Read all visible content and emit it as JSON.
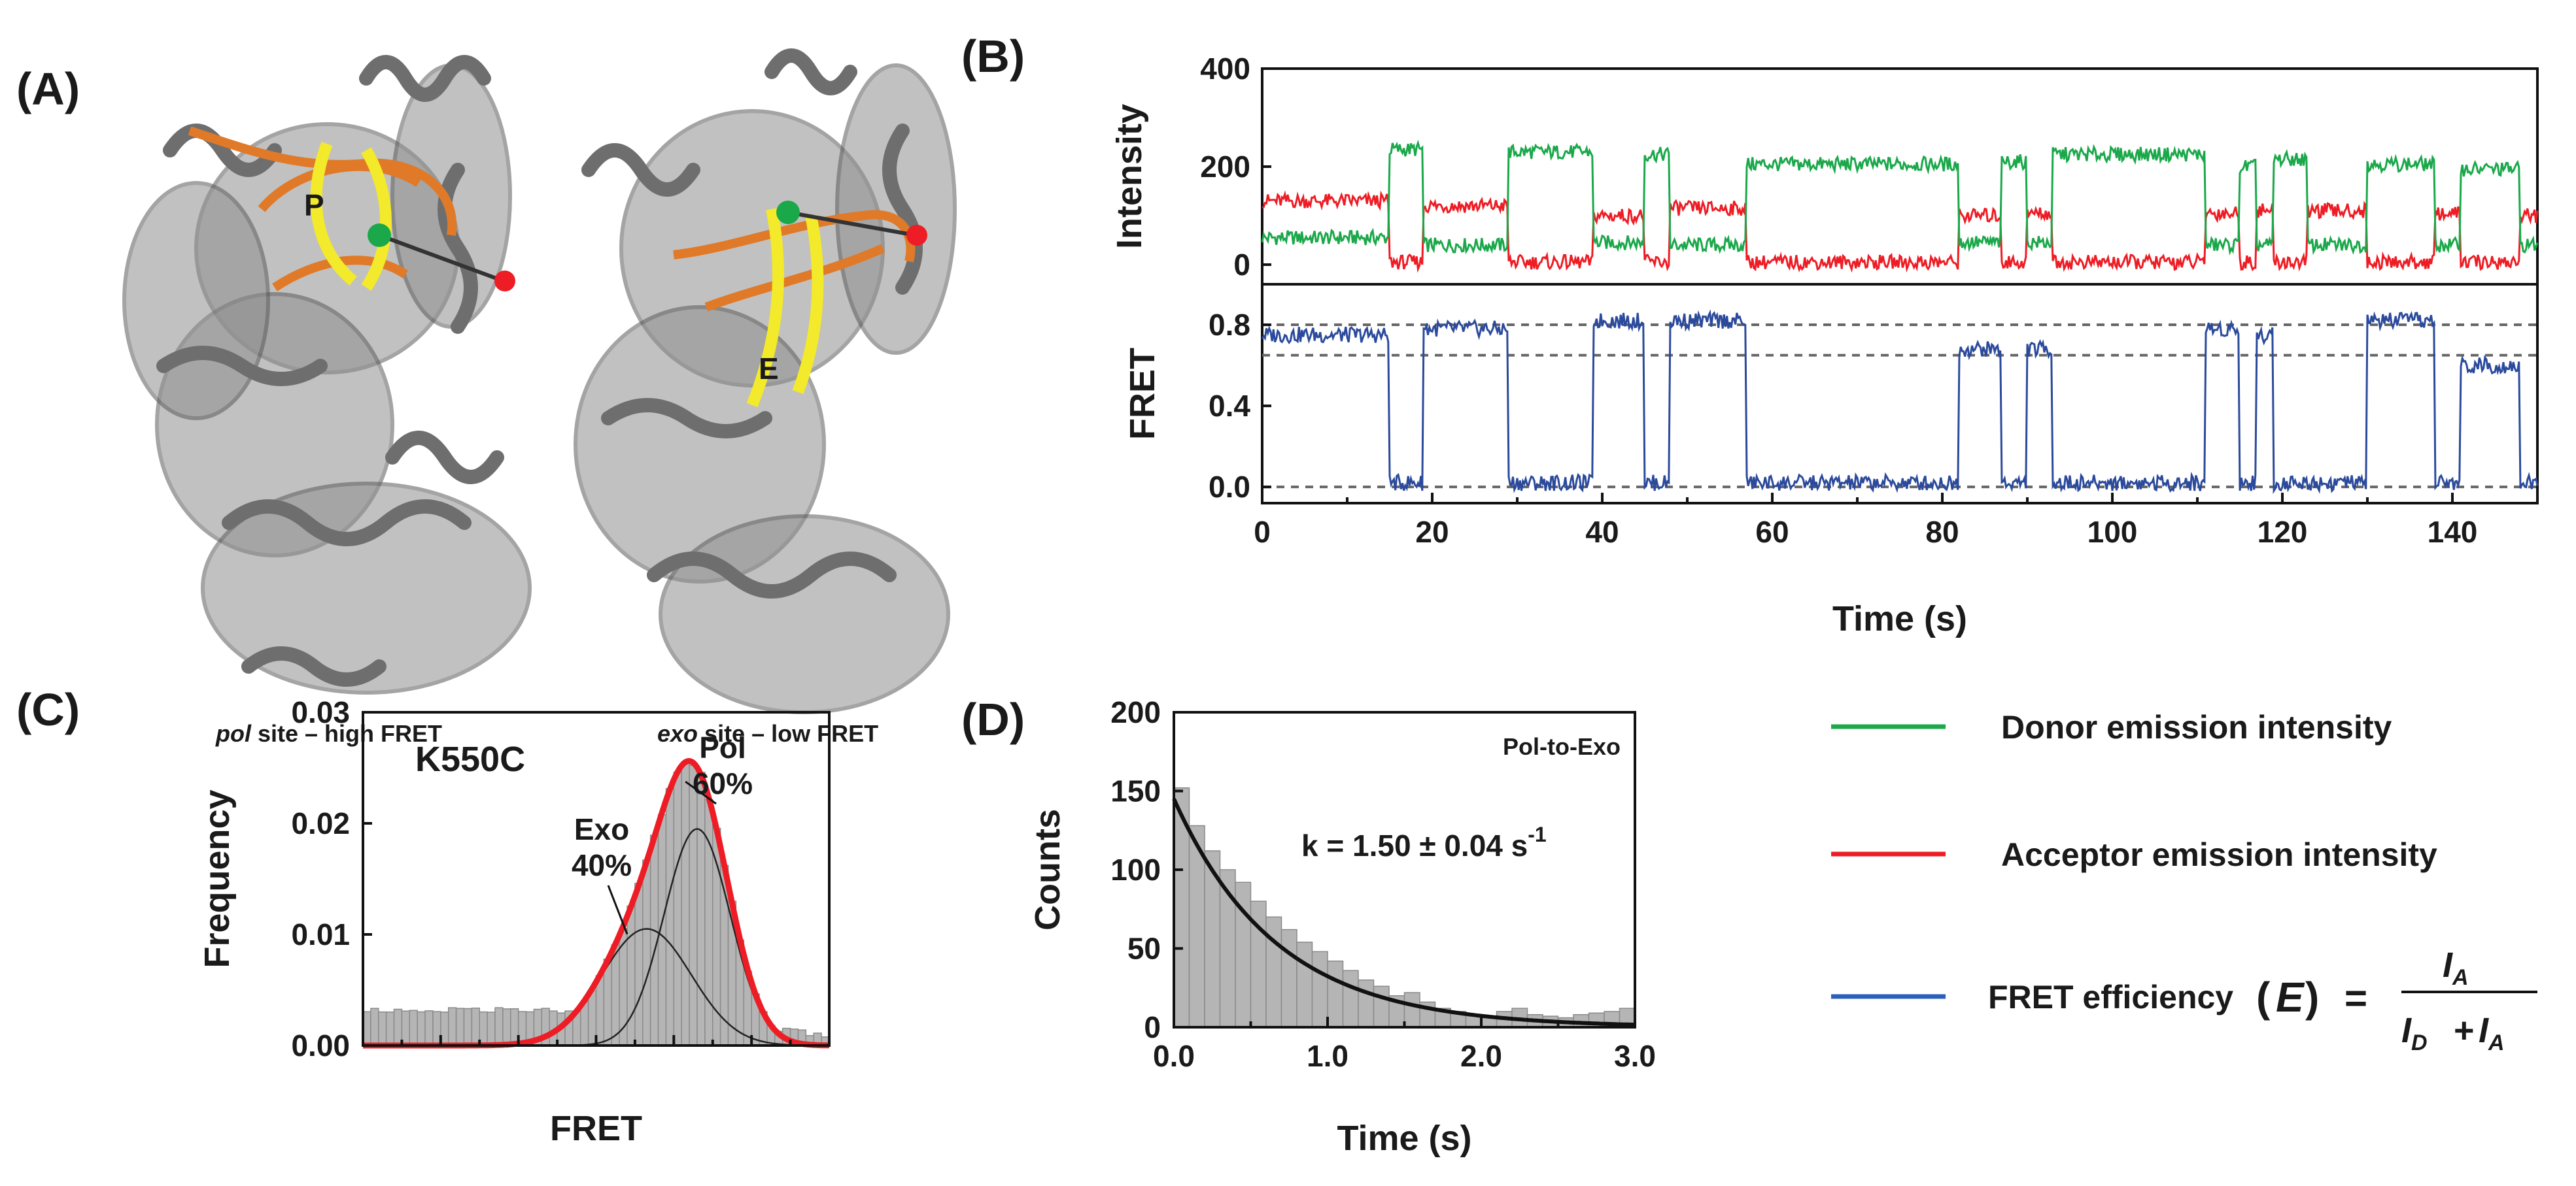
{
  "panels": {
    "A": {
      "label": "(A)",
      "left_caption_italic": "pol",
      "left_caption_rest": " site – high FRET",
      "right_caption_italic": "exo",
      "right_caption_rest": " site – low FRET",
      "mark_p": "P",
      "mark_e": "E"
    },
    "B": {
      "label": "(B)"
    },
    "C": {
      "label": "(C)"
    },
    "D": {
      "label": "(D)"
    }
  },
  "legend": {
    "items": [
      {
        "label": "Donor emission intensity",
        "color": "#1aa84a"
      },
      {
        "label": "Acceptor emission intensity",
        "color": "#ee1c24"
      },
      {
        "label": "FRET efficiency",
        "color": "#2b5fb8"
      }
    ],
    "formula": {
      "open": "(",
      "E": "E",
      "close": ")",
      "eq": "=",
      "num": "I",
      "num_sub": "A",
      "den_d": "I",
      "den_d_sub": "D",
      "plus": "+",
      "den_a": "I",
      "den_a_sub": "A"
    }
  },
  "colors": {
    "donor": "#1aa84a",
    "acceptor": "#ee1c24",
    "fret": "#2b4a9c",
    "bar": "#b5b5b5",
    "fit": "#ee1c24",
    "protein": "#8c8c8c",
    "dna_orange": "#e07a28",
    "dna_yellow": "#f2ea2a"
  },
  "chart_data": [
    {
      "id": "B-intensity",
      "type": "line",
      "ylabel": "Intensity",
      "xlim": [
        0,
        150
      ],
      "ylim": [
        -40,
        400
      ],
      "yticks": [
        0,
        200,
        400
      ],
      "series": [
        {
          "name": "Donor",
          "segments": [
            [
              0,
              15,
              55
            ],
            [
              15,
              19,
              235
            ],
            [
              19,
              29,
              40
            ],
            [
              29,
              39,
              230
            ],
            [
              39,
              45,
              45
            ],
            [
              45,
              48,
              225
            ],
            [
              48,
              57,
              40
            ],
            [
              57,
              82,
              205
            ],
            [
              82,
              87,
              45
            ],
            [
              87,
              90,
              210
            ],
            [
              90,
              93,
              45
            ],
            [
              93,
              111,
              225
            ],
            [
              111,
              115,
              40
            ],
            [
              115,
              117,
              200
            ],
            [
              117,
              119,
              40
            ],
            [
              119,
              123,
              215
            ],
            [
              123,
              130,
              40
            ],
            [
              130,
              138,
              205
            ],
            [
              138,
              141,
              40
            ],
            [
              141,
              148,
              195
            ],
            [
              148,
              150,
              40
            ]
          ]
        },
        {
          "name": "Acceptor",
          "segments": [
            [
              0,
              15,
              130
            ],
            [
              15,
              19,
              5
            ],
            [
              19,
              29,
              120
            ],
            [
              29,
              39,
              5
            ],
            [
              39,
              45,
              100
            ],
            [
              45,
              48,
              5
            ],
            [
              48,
              57,
              115
            ],
            [
              57,
              82,
              5
            ],
            [
              82,
              87,
              100
            ],
            [
              87,
              90,
              5
            ],
            [
              90,
              93,
              105
            ],
            [
              93,
              111,
              5
            ],
            [
              111,
              115,
              105
            ],
            [
              115,
              117,
              5
            ],
            [
              117,
              119,
              110
            ],
            [
              119,
              123,
              5
            ],
            [
              123,
              130,
              110
            ],
            [
              130,
              138,
              5
            ],
            [
              138,
              141,
              105
            ],
            [
              141,
              148,
              5
            ],
            [
              148,
              150,
              100
            ]
          ]
        }
      ]
    },
    {
      "id": "B-fret",
      "type": "line",
      "xlabel": "Time (s)",
      "ylabel": "FRET",
      "xlim": [
        0,
        150
      ],
      "ylim": [
        -0.08,
        1.0
      ],
      "xticks": [
        0,
        20,
        40,
        60,
        80,
        100,
        120,
        140
      ],
      "yticks": [
        0.0,
        0.4,
        0.8
      ],
      "yticklabels": [
        "0.0",
        "0.4",
        "0.8"
      ],
      "reference_lines": [
        0.0,
        0.65,
        0.8
      ],
      "series": [
        {
          "name": "FRET",
          "segments": [
            [
              0,
              15,
              0.75
            ],
            [
              15,
              19,
              0.02
            ],
            [
              19,
              29,
              0.78
            ],
            [
              29,
              39,
              0.02
            ],
            [
              39,
              45,
              0.82
            ],
            [
              45,
              48,
              0.02
            ],
            [
              48,
              57,
              0.82
            ],
            [
              57,
              82,
              0.02
            ],
            [
              82,
              87,
              0.68
            ],
            [
              87,
              90,
              0.02
            ],
            [
              90,
              93,
              0.68
            ],
            [
              93,
              111,
              0.02
            ],
            [
              111,
              115,
              0.78
            ],
            [
              115,
              117,
              0.02
            ],
            [
              117,
              119,
              0.75
            ],
            [
              119,
              123,
              0.02
            ],
            [
              123,
              130,
              0.02
            ],
            [
              130,
              138,
              0.82
            ],
            [
              138,
              141,
              0.02
            ],
            [
              141,
              148,
              0.6
            ],
            [
              148,
              150,
              0.02
            ]
          ]
        }
      ]
    },
    {
      "id": "C",
      "type": "bar",
      "title": "K550C",
      "xlabel": "FRET",
      "ylabel": "Frequency",
      "xlim": [
        -0.2,
        1.0
      ],
      "ylim": [
        0,
        0.03
      ],
      "yticks": [
        0.0,
        0.01,
        0.02,
        0.03
      ],
      "yticklabels": [
        "0.00",
        "0.01",
        "0.02",
        "0.03"
      ],
      "components": [
        {
          "name": "Exo",
          "percent": "40%",
          "mu": 0.53,
          "sigma": 0.115,
          "amp": 0.0105
        },
        {
          "name": "Pol",
          "percent": "60%",
          "mu": 0.66,
          "sigma": 0.085,
          "amp": 0.0195
        }
      ],
      "baseline": 0.0032,
      "annotations": [
        {
          "name": "Exo",
          "value": "40%"
        },
        {
          "name": "Pol",
          "value": "60%"
        }
      ]
    },
    {
      "id": "D",
      "type": "bar",
      "title": "Pol-to-Exo",
      "xlabel": "Time (s)",
      "ylabel": "Counts",
      "xlim": [
        0,
        3.0
      ],
      "ylim": [
        0,
        200
      ],
      "xticks": [
        0.0,
        1.0,
        2.0,
        3.0
      ],
      "xticklabels": [
        "0.0",
        "1.0",
        "2.0",
        "3.0"
      ],
      "yticks": [
        0,
        50,
        100,
        150,
        200
      ],
      "bin_width": 0.1,
      "values": [
        152,
        128,
        112,
        100,
        92,
        80,
        70,
        62,
        54,
        48,
        42,
        36,
        30,
        26,
        20,
        22,
        16,
        12,
        10,
        8,
        6,
        10,
        12,
        8,
        7,
        6,
        8,
        9,
        10,
        12
      ],
      "fit": {
        "A": 145,
        "k": 1.5
      },
      "annotation": "k = 1.50 ± 0.04 s",
      "annotation_sup": "-1"
    }
  ]
}
